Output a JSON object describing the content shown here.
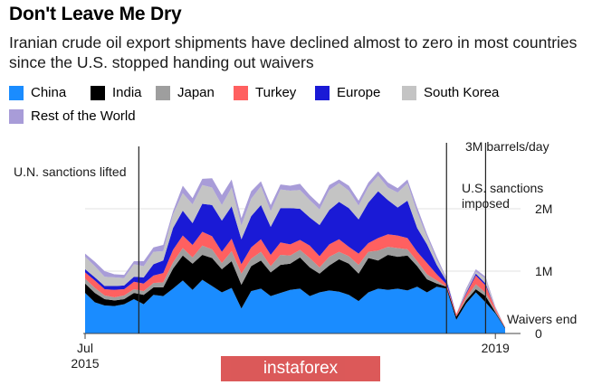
{
  "title": "Don't Leave Me Dry",
  "subtitle": "Iranian crude oil export shipments have declined almost to zero in most countries since the U.S. stopped handing out waivers",
  "watermark": "instaforex",
  "chart_data": {
    "type": "area",
    "stacked": true,
    "unit_label": "3M barrels/day",
    "yticks": [
      {
        "value": 0,
        "label": "0"
      },
      {
        "value": 1,
        "label": "1M"
      },
      {
        "value": 2,
        "label": "2M"
      }
    ],
    "ylim": [
      0,
      3
    ],
    "xticks": [
      {
        "x": 0,
        "label": "Jul",
        "label2": "2015"
      },
      {
        "x": 42,
        "label": "2019",
        "label2": ""
      }
    ],
    "x_start_label": "Jul 2015",
    "x_step": "month",
    "x": [
      0,
      1,
      2,
      3,
      4,
      5,
      6,
      7,
      8,
      9,
      10,
      11,
      12,
      13,
      14,
      15,
      16,
      17,
      18,
      19,
      20,
      21,
      22,
      23,
      24,
      25,
      26,
      27,
      28,
      29,
      30,
      31,
      32,
      33,
      34,
      35,
      36,
      37,
      38,
      39,
      40,
      41,
      42,
      43
    ],
    "annotations": [
      {
        "x": 5.5,
        "label": "U.N. sanctions lifted",
        "side": "left"
      },
      {
        "x": 37.0,
        "label": "U.S. sanctions imposed",
        "side": "right"
      },
      {
        "x": 41.0,
        "label": "Waivers end",
        "side": "right"
      }
    ],
    "legend_placement": "top",
    "series": [
      {
        "name": "China",
        "color": "#1a8cff",
        "values": [
          0.65,
          0.5,
          0.45,
          0.44,
          0.47,
          0.55,
          0.47,
          0.62,
          0.6,
          0.72,
          0.85,
          0.7,
          0.86,
          0.76,
          0.66,
          0.73,
          0.4,
          0.68,
          0.72,
          0.6,
          0.65,
          0.7,
          0.72,
          0.6,
          0.66,
          0.69,
          0.67,
          0.62,
          0.52,
          0.66,
          0.72,
          0.7,
          0.72,
          0.69,
          0.75,
          0.66,
          0.75,
          0.72,
          0.22,
          0.48,
          0.66,
          0.5,
          0.32,
          0.08
        ]
      },
      {
        "name": "India",
        "color": "#000000",
        "values": [
          0.15,
          0.15,
          0.1,
          0.09,
          0.08,
          0.1,
          0.15,
          0.12,
          0.14,
          0.32,
          0.4,
          0.42,
          0.4,
          0.45,
          0.37,
          0.43,
          0.38,
          0.4,
          0.45,
          0.38,
          0.45,
          0.42,
          0.5,
          0.46,
          0.3,
          0.4,
          0.52,
          0.5,
          0.44,
          0.55,
          0.45,
          0.56,
          0.51,
          0.56,
          0.33,
          0.21,
          0.05,
          0.03,
          0.05,
          0.05,
          0.05,
          0.1,
          0.02,
          0.01
        ]
      },
      {
        "name": "Japan",
        "color": "#9e9e9e",
        "values": [
          0.08,
          0.08,
          0.06,
          0.05,
          0.06,
          0.06,
          0.06,
          0.07,
          0.08,
          0.1,
          0.12,
          0.1,
          0.15,
          0.14,
          0.1,
          0.16,
          0.18,
          0.12,
          0.14,
          0.1,
          0.16,
          0.13,
          0.12,
          0.15,
          0.1,
          0.14,
          0.12,
          0.12,
          0.14,
          0.1,
          0.16,
          0.13,
          0.14,
          0.1,
          0.08,
          0.08,
          0.05,
          0.0,
          0.0,
          0.04,
          0.08,
          0.05,
          0.02,
          0.0
        ]
      },
      {
        "name": "Turkey",
        "color": "#ff6060",
        "values": [
          0.1,
          0.12,
          0.1,
          0.12,
          0.1,
          0.12,
          0.12,
          0.12,
          0.15,
          0.2,
          0.2,
          0.2,
          0.22,
          0.21,
          0.18,
          0.2,
          0.15,
          0.18,
          0.2,
          0.18,
          0.2,
          0.18,
          0.16,
          0.2,
          0.18,
          0.2,
          0.2,
          0.15,
          0.18,
          0.14,
          0.2,
          0.2,
          0.2,
          0.18,
          0.15,
          0.18,
          0.1,
          0.04,
          0.04,
          0.06,
          0.14,
          0.12,
          0.04,
          0.01
        ]
      },
      {
        "name": "Europe",
        "color": "#1a1ad6",
        "values": [
          0.05,
          0.05,
          0.05,
          0.06,
          0.06,
          0.08,
          0.1,
          0.18,
          0.2,
          0.35,
          0.4,
          0.35,
          0.45,
          0.5,
          0.5,
          0.52,
          0.4,
          0.5,
          0.55,
          0.45,
          0.55,
          0.58,
          0.5,
          0.45,
          0.5,
          0.55,
          0.6,
          0.62,
          0.55,
          0.65,
          0.75,
          0.55,
          0.45,
          0.6,
          0.38,
          0.3,
          0.15,
          0.05,
          0.0,
          0.02,
          0.03,
          0.03,
          0.0,
          0.0
        ]
      },
      {
        "name": "South Korea",
        "color": "#c4c4c4",
        "values": [
          0.2,
          0.18,
          0.15,
          0.14,
          0.12,
          0.2,
          0.18,
          0.2,
          0.15,
          0.22,
          0.28,
          0.3,
          0.3,
          0.28,
          0.25,
          0.3,
          0.22,
          0.28,
          0.3,
          0.25,
          0.3,
          0.28,
          0.3,
          0.28,
          0.25,
          0.32,
          0.3,
          0.28,
          0.22,
          0.25,
          0.25,
          0.2,
          0.24,
          0.28,
          0.25,
          0.12,
          0.08,
          0.03,
          0.0,
          0.04,
          0.03,
          0.08,
          0.01,
          0.0
        ]
      },
      {
        "name": "Rest of the World",
        "color": "#a89cd8",
        "values": [
          0.05,
          0.07,
          0.09,
          0.05,
          0.05,
          0.05,
          0.08,
          0.07,
          0.1,
          0.05,
          0.12,
          0.1,
          0.1,
          0.15,
          0.16,
          0.13,
          0.12,
          0.12,
          0.08,
          0.1,
          0.08,
          0.08,
          0.1,
          0.08,
          0.08,
          0.08,
          0.06,
          0.08,
          0.08,
          0.07,
          0.07,
          0.08,
          0.07,
          0.06,
          0.08,
          0.05,
          0.05,
          0.02,
          0.0,
          0.03,
          0.04,
          0.03,
          0.02,
          0.0
        ]
      }
    ]
  }
}
